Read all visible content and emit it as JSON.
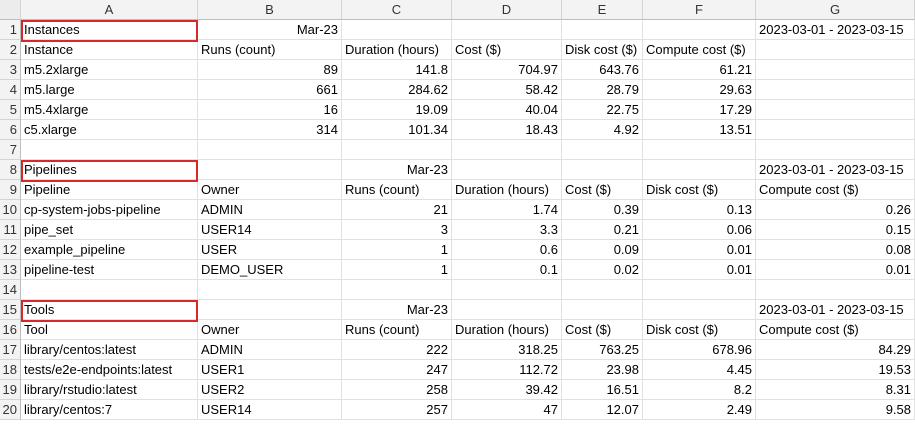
{
  "columns": [
    "A",
    "B",
    "C",
    "D",
    "E",
    "F",
    "G"
  ],
  "rows": [
    [
      "Instances",
      "Mar-23",
      "",
      "",
      "",
      "",
      "2023-03-01 - 2023-03-15"
    ],
    [
      "Instance",
      "Runs (count)",
      "Duration (hours)",
      "Cost ($)",
      "Disk cost ($)",
      "Compute cost ($)",
      ""
    ],
    [
      "m5.2xlarge",
      "89",
      "141.8",
      "704.97",
      "643.76",
      "61.21",
      ""
    ],
    [
      "m5.large",
      "661",
      "284.62",
      "58.42",
      "28.79",
      "29.63",
      ""
    ],
    [
      "m5.4xlarge",
      "16",
      "19.09",
      "40.04",
      "22.75",
      "17.29",
      ""
    ],
    [
      "c5.xlarge",
      "314",
      "101.34",
      "18.43",
      "4.92",
      "13.51",
      ""
    ],
    [
      "",
      "",
      "",
      "",
      "",
      "",
      ""
    ],
    [
      "Pipelines",
      "",
      "Mar-23",
      "",
      "",
      "",
      "2023-03-01 - 2023-03-15"
    ],
    [
      "Pipeline",
      "Owner",
      "Runs (count)",
      "Duration (hours)",
      "Cost ($)",
      "Disk cost ($)",
      "Compute cost ($)"
    ],
    [
      "cp-system-jobs-pipeline",
      "ADMIN",
      "21",
      "1.74",
      "0.39",
      "0.13",
      "0.26"
    ],
    [
      "pipe_set",
      "USER14",
      "3",
      "3.3",
      "0.21",
      "0.06",
      "0.15"
    ],
    [
      "example_pipeline",
      "USER",
      "1",
      "0.6",
      "0.09",
      "0.01",
      "0.08"
    ],
    [
      "pipeline-test",
      "DEMO_USER",
      "1",
      "0.1",
      "0.02",
      "0.01",
      "0.01"
    ],
    [
      "",
      "",
      "",
      "",
      "",
      "",
      ""
    ],
    [
      "Tools",
      "",
      "Mar-23",
      "",
      "",
      "",
      "2023-03-01 - 2023-03-15"
    ],
    [
      "Tool",
      "Owner",
      "Runs (count)",
      "Duration (hours)",
      "Cost ($)",
      "Disk cost ($)",
      "Compute cost ($)"
    ],
    [
      "library/centos:latest",
      "ADMIN",
      "222",
      "318.25",
      "763.25",
      "678.96",
      "84.29"
    ],
    [
      "tests/e2e-endpoints:latest",
      "USER1",
      "247",
      "112.72",
      "23.98",
      "4.45",
      "19.53"
    ],
    [
      "library/rstudio:latest",
      "USER2",
      "258",
      "39.42",
      "16.51",
      "8.2",
      "8.31"
    ],
    [
      "library/centos:7",
      "USER14",
      "257",
      "47",
      "12.07",
      "2.49",
      "9.58"
    ]
  ],
  "row_numbers": [
    "1",
    "2",
    "3",
    "4",
    "5",
    "6",
    "7",
    "8",
    "9",
    "10",
    "11",
    "12",
    "13",
    "14",
    "15",
    "16",
    "17",
    "18",
    "19",
    "20"
  ],
  "highlight_color": "#d62a2a"
}
